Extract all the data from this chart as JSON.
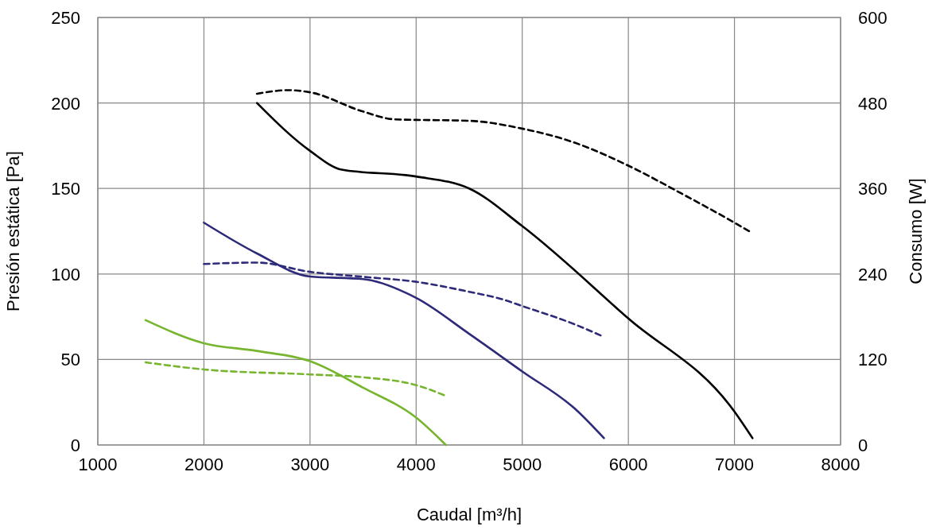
{
  "chart_data": {
    "type": "line",
    "xlabel": "Caudal [m³/h]",
    "ylabel": "Presión estática [Pa]",
    "y2label": "Consumo [W]",
    "xlim": [
      1000,
      8000
    ],
    "xticks": [
      1000,
      2000,
      3000,
      4000,
      5000,
      6000,
      7000,
      8000
    ],
    "ylim": [
      0,
      250
    ],
    "yticks": [
      0,
      50,
      100,
      150,
      200,
      250
    ],
    "y2lim": [
      0,
      600
    ],
    "y2ticks": [
      0,
      120,
      240,
      360,
      480,
      600
    ],
    "grid": true,
    "marker": "none",
    "series": [
      {
        "color": "#000000",
        "line_style": "solid",
        "x": [
          2500,
          3000,
          3300,
          4000,
          4500,
          5000,
          6000,
          7000,
          7170
        ],
        "values": [
          200,
          172,
          161,
          157,
          150,
          128,
          74,
          19.5,
          4
        ]
      },
      {
        "color": "#000000",
        "line_style": "dashed",
        "axis": "y2",
        "x": [
          2500,
          2800,
          3000,
          3500,
          3800,
          4500,
          5000,
          5500,
          6000,
          6500,
          7000,
          7150
        ],
        "values": [
          493,
          498,
          495,
          468,
          457,
          455,
          444,
          424,
          392,
          353,
          312,
          299
        ]
      },
      {
        "color": "#2e2a7a",
        "line_style": "solid",
        "x": [
          2000,
          2500,
          3000,
          3500,
          4000,
          4500,
          5000,
          5500,
          5770
        ],
        "values": [
          130,
          112,
          98.5,
          97,
          86,
          65,
          43,
          21,
          4
        ]
      },
      {
        "color": "#2e2a7a",
        "line_style": "dashed",
        "axis": "y2",
        "x": [
          2000,
          2500,
          3000,
          3500,
          4000,
          4500,
          4800,
          5000,
          5500,
          5750
        ],
        "values": [
          254,
          256,
          243,
          236,
          229,
          215,
          205,
          195,
          169,
          153
        ]
      },
      {
        "color": "#77b52e",
        "line_style": "solid",
        "x": [
          1450,
          2000,
          2500,
          3000,
          3500,
          4000,
          4280
        ],
        "values": [
          73,
          59.5,
          55,
          49,
          33.5,
          16,
          0
        ]
      },
      {
        "color": "#77b52e",
        "line_style": "dashed",
        "axis": "y2",
        "x": [
          1450,
          2000,
          3000,
          3500,
          4000,
          4280
        ],
        "values": [
          116,
          106,
          99,
          95,
          84,
          69
        ]
      }
    ]
  }
}
